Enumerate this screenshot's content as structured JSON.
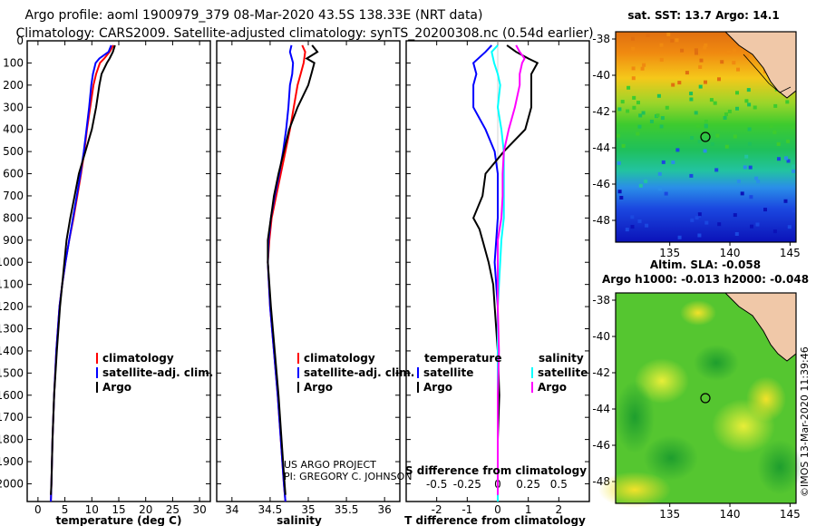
{
  "title": {
    "line1": "Argo profile: aoml 1900979_379 08-Mar-2020 43.5S 138.33E (NRT data)",
    "line2": "Climatology: CARS2009. Satellite-adjusted climatology: synTS_20200308.nc (0.54d earlier)"
  },
  "credit": {
    "line1": "US ARGO PROJECT",
    "line2": "PI: GREGORY C. JOHNSON"
  },
  "side_label": "©IMOS 13-Mar-2020 11:39:46",
  "colors": {
    "argo": "#000000",
    "climatology": "#ff0000",
    "satellite": "#0000ff",
    "sal_satellite": "#00ffff",
    "sal_argo": "#ff00ff"
  },
  "chart_data": [
    {
      "type": "line",
      "xlabel": "temperature (deg C)",
      "xlim": [
        -2,
        32
      ],
      "ylim": [
        2080,
        0
      ],
      "xticks": [
        "0",
        "5",
        "10",
        "15",
        "20",
        "25",
        "30"
      ],
      "yticks": [
        "0",
        "100",
        "200",
        "300",
        "400",
        "500",
        "600",
        "700",
        "800",
        "900",
        "1000",
        "1100",
        "1200",
        "1300",
        "1400",
        "1500",
        "1600",
        "1700",
        "1800",
        "1900",
        "2000"
      ],
      "legend": [
        "climatology",
        "satellite-adj. clim.",
        "Argo"
      ],
      "series": [
        {
          "name": "climatology",
          "depth": [
            20,
            50,
            80,
            100,
            150,
            200,
            300,
            400,
            500,
            600,
            700,
            800,
            900,
            1000,
            1100,
            1200,
            1400,
            1600,
            1800,
            2000,
            2080
          ],
          "values": [
            14,
            13.3,
            12.3,
            11.5,
            10.8,
            10.3,
            9.7,
            9.1,
            8.6,
            8.0,
            7.3,
            6.6,
            5.8,
            5.1,
            4.5,
            4.0,
            3.4,
            3.0,
            2.7,
            2.5,
            2.4
          ]
        },
        {
          "name": "satellite-adj. clim.",
          "depth": [
            20,
            50,
            80,
            100,
            150,
            200,
            300,
            400,
            500,
            600,
            700,
            800,
            900,
            1000,
            1100,
            1200,
            1400,
            1600,
            1800,
            2000,
            2080
          ],
          "values": [
            13.6,
            13.1,
            11.4,
            10.7,
            10.2,
            9.9,
            9.5,
            9.0,
            8.5,
            7.9,
            7.2,
            6.5,
            5.8,
            5.1,
            4.5,
            4.0,
            3.4,
            3.0,
            2.7,
            2.5,
            2.4
          ]
        },
        {
          "name": "Argo",
          "depth": [
            20,
            50,
            80,
            100,
            150,
            200,
            300,
            400,
            500,
            600,
            700,
            800,
            900,
            1000,
            1100,
            1200,
            1400,
            1600,
            1800,
            2000,
            2050
          ],
          "values": [
            14.3,
            13.9,
            13.3,
            12.8,
            11.8,
            11.4,
            10.8,
            10.0,
            8.8,
            7.6,
            6.8,
            6.0,
            5.3,
            4.9,
            4.5,
            4.1,
            3.5,
            3.0,
            2.7,
            2.5,
            2.4
          ]
        }
      ]
    },
    {
      "type": "line",
      "xlabel": "salinity",
      "xlim": [
        33.8,
        36.2
      ],
      "ylim": [
        2080,
        0
      ],
      "xticks": [
        "34",
        "34.5",
        "35",
        "35.5",
        "36"
      ],
      "legend": [
        "climatology",
        "satellite-adj. clim.",
        "Argo"
      ],
      "series": [
        {
          "name": "climatology",
          "depth": [
            20,
            50,
            100,
            150,
            200,
            300,
            400,
            500,
            600,
            700,
            800,
            900,
            1000,
            1200,
            1400,
            1600,
            1800,
            2000,
            2080
          ],
          "values": [
            34.92,
            34.96,
            34.94,
            34.9,
            34.86,
            34.81,
            34.76,
            34.7,
            34.64,
            34.58,
            34.52,
            34.49,
            34.47,
            34.5,
            34.55,
            34.6,
            34.64,
            34.68,
            34.7
          ]
        },
        {
          "name": "satellite-adj. clim.",
          "depth": [
            20,
            50,
            100,
            150,
            200,
            300,
            400,
            500,
            600,
            700,
            800,
            900,
            1000,
            1200,
            1400,
            1600,
            1800,
            2000,
            2080
          ],
          "values": [
            34.78,
            34.76,
            34.8,
            34.79,
            34.76,
            34.74,
            34.71,
            34.67,
            34.62,
            34.56,
            34.51,
            34.48,
            34.47,
            34.5,
            34.55,
            34.6,
            34.64,
            34.68,
            34.7
          ]
        },
        {
          "name": "Argo",
          "depth": [
            20,
            50,
            80,
            100,
            150,
            200,
            300,
            400,
            500,
            600,
            700,
            800,
            900,
            1000,
            1200,
            1400,
            1600,
            1800,
            2000,
            2050
          ],
          "values": [
            35.05,
            35.12,
            34.98,
            35.08,
            35.04,
            35.0,
            34.86,
            34.75,
            34.68,
            34.61,
            34.55,
            34.51,
            34.47,
            34.47,
            34.51,
            34.56,
            34.61,
            34.65,
            34.69,
            34.7
          ]
        }
      ]
    },
    {
      "type": "line",
      "xlabel": "T difference from climatology",
      "top_axis_label": "S difference from climatology",
      "xlim": [
        -3,
        3
      ],
      "ylim": [
        2080,
        0
      ],
      "xticks": [
        "-2",
        "-1",
        "0",
        "1",
        "2"
      ],
      "top_xticks": [
        "-0.5",
        "-0.25",
        "0",
        "0.25",
        "0.5"
      ],
      "legend": {
        "temperature": "temperature",
        "salinity": "salinity",
        "entries": [
          "satellite",
          "Argo",
          "satellite",
          "Argo"
        ]
      },
      "series": [
        {
          "name": "temperature satellite",
          "depth": [
            20,
            50,
            100,
            150,
            200,
            300,
            400,
            500,
            600,
            700,
            800,
            900,
            1000,
            1100,
            1200,
            1400,
            1600,
            1800,
            2000,
            2080
          ],
          "values": [
            -0.2,
            -0.4,
            -0.8,
            -0.7,
            -0.8,
            -0.8,
            -0.4,
            -0.1,
            0.0,
            0.0,
            0.0,
            -0.05,
            -0.1,
            -0.05,
            0.0,
            0.0,
            0.0,
            0.0,
            0.0,
            0.0
          ]
        },
        {
          "name": "temperature Argo",
          "depth": [
            20,
            50,
            80,
            100,
            150,
            200,
            300,
            400,
            500,
            600,
            700,
            800,
            850,
            900,
            1000,
            1100,
            1200,
            1400,
            1600,
            1800,
            2000,
            2050
          ],
          "values": [
            0.3,
            0.6,
            1.0,
            1.3,
            1.1,
            1.1,
            1.1,
            0.9,
            0.2,
            -0.4,
            -0.5,
            -0.8,
            -0.6,
            -0.5,
            -0.3,
            -0.15,
            -0.1,
            0.0,
            0.05,
            0.0,
            0.0,
            0.0
          ]
        },
        {
          "name": "salinity satellite",
          "depth": [
            20,
            50,
            100,
            150,
            200,
            300,
            400,
            500,
            600,
            700,
            800,
            900,
            1000,
            1200,
            1400,
            1600,
            1800,
            2000,
            2080
          ],
          "values": [
            0.0,
            -0.05,
            -0.03,
            0.0,
            0.02,
            0.0,
            0.03,
            0.05,
            0.05,
            0.05,
            0.05,
            0.03,
            0.02,
            0.0,
            0.0,
            0.0,
            0.0,
            0.0,
            0.0
          ]
        },
        {
          "name": "salinity Argo",
          "depth": [
            20,
            50,
            80,
            100,
            150,
            200,
            300,
            400,
            500,
            600,
            700,
            800,
            900,
            1000,
            1200,
            1400,
            1600,
            1800,
            2000,
            2050
          ],
          "values": [
            0.15,
            0.18,
            0.22,
            0.2,
            0.18,
            0.18,
            0.14,
            0.09,
            0.05,
            0.04,
            0.04,
            0.03,
            0.0,
            0.0,
            0.0,
            0.01,
            0.0,
            0.0,
            0.0,
            0.0
          ]
        }
      ]
    },
    {
      "type": "heatmap",
      "title": "sat. SST: 13.7 Argo: 14.1",
      "xticks": [
        "135",
        "140",
        "145"
      ],
      "yticks": [
        "-38",
        "-40",
        "-42",
        "-44",
        "-46",
        "-48"
      ],
      "xlim": [
        130.5,
        145.5
      ],
      "ylim": [
        -49.2,
        -37.6
      ],
      "marker": {
        "lon": 138.33,
        "lat": -43.5
      }
    },
    {
      "type": "heatmap",
      "title_line1": "Altim. SLA: -0.058",
      "title_line2": "Argo h1000: -0.013 h2000: -0.048",
      "xticks": [
        "135",
        "140",
        "145"
      ],
      "yticks": [
        "-38",
        "-40",
        "-42",
        "-44",
        "-46",
        "-48"
      ],
      "xlim": [
        130.5,
        145.5
      ],
      "ylim": [
        -49.2,
        -37.6
      ],
      "marker": {
        "lon": 138.33,
        "lat": -43.5
      }
    }
  ]
}
